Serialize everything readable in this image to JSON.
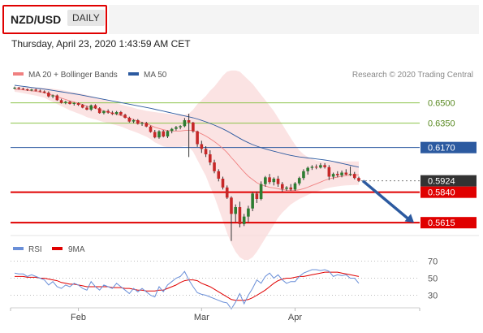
{
  "header": {
    "pair": "NZD/USD",
    "period": "DAILY",
    "datetime": "Thursday, April 23, 2020 1:43:59 AM CET"
  },
  "credit": "Research © 2020 Trading Central",
  "colors": {
    "ma20": "#f08080",
    "ma50": "#2c5aa0",
    "support": "#e00000",
    "pivot_line": "#2c5aa0",
    "target_line": "#8bc34a",
    "up_candle": "#2e7d32",
    "down_candle": "#c62828",
    "rsi": "#6a8fd8",
    "ma9": "#e00000",
    "arrow": "#2c5aa0",
    "band_fill": "#fadada"
  },
  "chart_data": [
    {
      "type": "candlestick",
      "legend": [
        "MA 20 + Bollinger Bands",
        "MA 50"
      ],
      "x_labels": [
        "Feb",
        "Mar",
        "Apr"
      ],
      "ylim": [
        0.552,
        0.66
      ],
      "level_lines": [
        {
          "label": "0.6500",
          "kind": "target"
        },
        {
          "label": "0.6350",
          "kind": "target"
        },
        {
          "label": "0.6170",
          "kind": "pivot"
        },
        {
          "label": "0.5924",
          "kind": "last"
        },
        {
          "label": "0.5840",
          "kind": "support"
        },
        {
          "label": "0.5615",
          "kind": "support"
        }
      ],
      "candles": [
        [
          0.661,
          0.662,
          0.66,
          0.6612
        ],
        [
          0.6612,
          0.6618,
          0.6598,
          0.6605
        ],
        [
          0.6605,
          0.6612,
          0.6595,
          0.66
        ],
        [
          0.66,
          0.6606,
          0.6588,
          0.6594
        ],
        [
          0.6594,
          0.6604,
          0.6586,
          0.6598
        ],
        [
          0.6598,
          0.6605,
          0.6585,
          0.659
        ],
        [
          0.659,
          0.6598,
          0.6578,
          0.6584
        ],
        [
          0.6584,
          0.6592,
          0.657,
          0.6575
        ],
        [
          0.6575,
          0.6585,
          0.654,
          0.6548
        ],
        [
          0.6548,
          0.6562,
          0.6535,
          0.6555
        ],
        [
          0.6555,
          0.6562,
          0.6515,
          0.652
        ],
        [
          0.652,
          0.653,
          0.6495,
          0.65
        ],
        [
          0.65,
          0.6515,
          0.649,
          0.6508
        ],
        [
          0.6508,
          0.6515,
          0.6488,
          0.6492
        ],
        [
          0.6492,
          0.6505,
          0.648,
          0.6498
        ],
        [
          0.6498,
          0.6504,
          0.6478,
          0.6485
        ],
        [
          0.6485,
          0.6492,
          0.646,
          0.6465
        ],
        [
          0.6465,
          0.6478,
          0.6445,
          0.645
        ],
        [
          0.645,
          0.6488,
          0.644,
          0.6482
        ],
        [
          0.6482,
          0.649,
          0.6455,
          0.646
        ],
        [
          0.646,
          0.6468,
          0.642,
          0.6425
        ],
        [
          0.6425,
          0.6445,
          0.6415,
          0.644
        ],
        [
          0.644,
          0.6452,
          0.642,
          0.6428
        ],
        [
          0.6428,
          0.644,
          0.641,
          0.6418
        ],
        [
          0.6418,
          0.644,
          0.641,
          0.6432
        ],
        [
          0.6432,
          0.644,
          0.6405,
          0.6412
        ],
        [
          0.6412,
          0.642,
          0.6385,
          0.639
        ],
        [
          0.639,
          0.6398,
          0.6355,
          0.6362
        ],
        [
          0.6362,
          0.638,
          0.635,
          0.6372
        ],
        [
          0.6372,
          0.638,
          0.634,
          0.6345
        ],
        [
          0.6345,
          0.636,
          0.633,
          0.6352
        ],
        [
          0.6352,
          0.636,
          0.632,
          0.6325
        ],
        [
          0.6325,
          0.6332,
          0.628,
          0.6285
        ],
        [
          0.6285,
          0.63,
          0.6238,
          0.6245
        ],
        [
          0.6245,
          0.6298,
          0.6235,
          0.629
        ],
        [
          0.629,
          0.63,
          0.6245,
          0.6252
        ],
        [
          0.6252,
          0.6298,
          0.624,
          0.6292
        ],
        [
          0.6292,
          0.6315,
          0.6275,
          0.6308
        ],
        [
          0.6308,
          0.633,
          0.6295,
          0.632
        ],
        [
          0.632,
          0.6335,
          0.6305,
          0.6328
        ],
        [
          0.6328,
          0.6388,
          0.632,
          0.6372
        ],
        [
          0.6372,
          0.642,
          0.61,
          0.6355
        ],
        [
          0.6355,
          0.636,
          0.628,
          0.629
        ],
        [
          0.629,
          0.6295,
          0.6175,
          0.6195
        ],
        [
          0.6195,
          0.622,
          0.613,
          0.616
        ],
        [
          0.616,
          0.618,
          0.61,
          0.612
        ],
        [
          0.612,
          0.615,
          0.604,
          0.606
        ],
        [
          0.606,
          0.608,
          0.598,
          0.5995
        ],
        [
          0.5995,
          0.601,
          0.592,
          0.594
        ],
        [
          0.594,
          0.5955,
          0.586,
          0.5875
        ],
        [
          0.5875,
          0.589,
          0.579,
          0.58
        ],
        [
          0.58,
          0.581,
          0.548,
          0.568
        ],
        [
          0.568,
          0.575,
          0.562,
          0.573
        ],
        [
          0.573,
          0.577,
          0.558,
          0.5605
        ],
        [
          0.5605,
          0.568,
          0.559,
          0.566
        ],
        [
          0.566,
          0.574,
          0.562,
          0.572
        ],
        [
          0.572,
          0.584,
          0.57,
          0.583
        ],
        [
          0.583,
          0.5845,
          0.576,
          0.579
        ],
        [
          0.579,
          0.592,
          0.578,
          0.59
        ],
        [
          0.59,
          0.596,
          0.588,
          0.595
        ],
        [
          0.595,
          0.5975,
          0.59,
          0.5915
        ],
        [
          0.5915,
          0.595,
          0.589,
          0.594
        ],
        [
          0.594,
          0.596,
          0.588,
          0.59
        ],
        [
          0.59,
          0.5915,
          0.5845,
          0.5865
        ],
        [
          0.5865,
          0.5885,
          0.585,
          0.5875
        ],
        [
          0.5875,
          0.59,
          0.585,
          0.586
        ],
        [
          0.586,
          0.5915,
          0.585,
          0.5905
        ],
        [
          0.5905,
          0.5955,
          0.589,
          0.5945
        ],
        [
          0.5945,
          0.601,
          0.593,
          0.5995
        ],
        [
          0.5995,
          0.603,
          0.597,
          0.602
        ],
        [
          0.602,
          0.604,
          0.6005,
          0.6028
        ],
        [
          0.6028,
          0.6045,
          0.601,
          0.6022
        ],
        [
          0.6022,
          0.6055,
          0.6015,
          0.604
        ],
        [
          0.604,
          0.6055,
          0.6015,
          0.6025
        ],
        [
          0.6025,
          0.604,
          0.593,
          0.5955
        ],
        [
          0.5955,
          0.5985,
          0.5935,
          0.5975
        ],
        [
          0.5975,
          0.5995,
          0.595,
          0.5965
        ],
        [
          0.5965,
          0.6,
          0.595,
          0.5985
        ],
        [
          0.5985,
          0.601,
          0.5965,
          0.597
        ],
        [
          0.597,
          0.603,
          0.596,
          0.5975
        ],
        [
          0.5975,
          0.599,
          0.5935,
          0.5945
        ],
        [
          0.5945,
          0.5955,
          0.5915,
          0.5924
        ]
      ],
      "ma20": [
        0.66,
        0.6598,
        0.6596,
        0.6592,
        0.6589,
        0.6585,
        0.658,
        0.6574,
        0.6565,
        0.6556,
        0.6546,
        0.6535,
        0.6525,
        0.6515,
        0.6506,
        0.6497,
        0.6487,
        0.6476,
        0.6468,
        0.646,
        0.645,
        0.6441,
        0.6433,
        0.6424,
        0.6416,
        0.6407,
        0.6397,
        0.6386,
        0.6376,
        0.6366,
        0.6356,
        0.6346,
        0.6334,
        0.632,
        0.6311,
        0.6302,
        0.6296,
        0.6293,
        0.6292,
        0.6292,
        0.6296,
        0.6298,
        0.6295,
        0.6285,
        0.6271,
        0.6255,
        0.6236,
        0.6214,
        0.619,
        0.6163,
        0.6134,
        0.6096,
        0.6062,
        0.6025,
        0.599,
        0.5958,
        0.5934,
        0.591,
        0.5895,
        0.5886,
        0.5876,
        0.5872,
        0.5866,
        0.5859,
        0.5855,
        0.5852,
        0.5853,
        0.5858,
        0.5866,
        0.5877,
        0.589,
        0.5902,
        0.5915,
        0.5928,
        0.5938,
        0.5946,
        0.5952,
        0.5958,
        0.5962,
        0.5966,
        0.5968,
        0.5968
      ],
      "bb_upper": [
        0.662,
        0.662,
        0.662,
        0.6618,
        0.6616,
        0.6614,
        0.6612,
        0.661,
        0.6608,
        0.6605,
        0.66,
        0.6595,
        0.659,
        0.6584,
        0.6578,
        0.6572,
        0.6565,
        0.6558,
        0.655,
        0.6542,
        0.6533,
        0.6524,
        0.6515,
        0.6506,
        0.6497,
        0.6488,
        0.648,
        0.6472,
        0.6463,
        0.6455,
        0.6448,
        0.6441,
        0.6436,
        0.6432,
        0.6428,
        0.6425,
        0.642,
        0.6416,
        0.6412,
        0.641,
        0.6412,
        0.642,
        0.645,
        0.649,
        0.652,
        0.655,
        0.659,
        0.662,
        0.666,
        0.67,
        0.673,
        0.674,
        0.674,
        0.673,
        0.67,
        0.667,
        0.664,
        0.66,
        0.656,
        0.652,
        0.648,
        0.644,
        0.639,
        0.634,
        0.629,
        0.624,
        0.619,
        0.615,
        0.612,
        0.61,
        0.6085,
        0.6075,
        0.607,
        0.6068,
        0.6068,
        0.6068,
        0.6068,
        0.6068,
        0.6068,
        0.6068,
        0.6068,
        0.6068
      ],
      "bb_lower": [
        0.6582,
        0.6578,
        0.6572,
        0.6566,
        0.656,
        0.6554,
        0.6546,
        0.6538,
        0.6522,
        0.6507,
        0.6492,
        0.6475,
        0.646,
        0.6446,
        0.6434,
        0.6422,
        0.6409,
        0.6394,
        0.6386,
        0.6378,
        0.6367,
        0.6358,
        0.6351,
        0.6342,
        0.6335,
        0.6326,
        0.6314,
        0.63,
        0.6289,
        0.6277,
        0.6264,
        0.6251,
        0.6232,
        0.6208,
        0.6194,
        0.6179,
        0.6172,
        0.617,
        0.6172,
        0.6174,
        0.618,
        0.6176,
        0.614,
        0.608,
        0.602,
        0.596,
        0.588,
        0.581,
        0.572,
        0.563,
        0.554,
        0.546,
        0.54,
        0.536,
        0.534,
        0.534,
        0.536,
        0.54,
        0.545,
        0.55,
        0.555,
        0.56,
        0.565,
        0.569,
        0.572,
        0.575,
        0.577,
        0.579,
        0.5805,
        0.582,
        0.5835,
        0.5845,
        0.5855,
        0.5865,
        0.5872,
        0.5878,
        0.5883,
        0.5887,
        0.589,
        0.5892,
        0.5893,
        0.5893
      ],
      "ma50": [
        0.663,
        0.6626,
        0.6622,
        0.6618,
        0.6614,
        0.661,
        0.6606,
        0.6602,
        0.6597,
        0.6592,
        0.6587,
        0.6582,
        0.6577,
        0.6572,
        0.6567,
        0.6562,
        0.6556,
        0.655,
        0.6544,
        0.6538,
        0.6532,
        0.6526,
        0.652,
        0.6514,
        0.6508,
        0.6502,
        0.6496,
        0.649,
        0.6484,
        0.6478,
        0.6472,
        0.6466,
        0.646,
        0.6453,
        0.6446,
        0.6439,
        0.6432,
        0.6425,
        0.6418,
        0.6411,
        0.6404,
        0.6397,
        0.639,
        0.6381,
        0.6371,
        0.636,
        0.6348,
        0.6336,
        0.6322,
        0.6308,
        0.6292,
        0.6274,
        0.6256,
        0.6238,
        0.6221,
        0.6206,
        0.6192,
        0.618,
        0.6169,
        0.616,
        0.6151,
        0.6143,
        0.6135,
        0.6127,
        0.6119,
        0.6112,
        0.6106,
        0.6101,
        0.6097,
        0.6093,
        0.609,
        0.6086,
        0.6082,
        0.6078,
        0.6073,
        0.6067,
        0.606,
        0.6053,
        0.6046,
        0.6039,
        0.6032,
        0.6025
      ],
      "forecast": {
        "from": 0.5924,
        "to": 0.5615
      }
    },
    {
      "type": "line",
      "legend": [
        "RSI",
        "9MA"
      ],
      "ylim": [
        20,
        80
      ],
      "levels": [
        "70",
        "50",
        "30"
      ],
      "rsi": [
        56,
        55,
        55,
        52,
        54,
        52,
        50,
        48,
        42,
        46,
        40,
        38,
        42,
        40,
        44,
        42,
        38,
        36,
        46,
        40,
        36,
        42,
        40,
        38,
        44,
        40,
        36,
        32,
        38,
        34,
        38,
        34,
        30,
        28,
        40,
        34,
        42,
        46,
        50,
        52,
        58,
        48,
        40,
        33,
        31,
        30,
        28,
        26,
        24,
        22,
        21,
        14,
        22,
        32,
        20,
        30,
        38,
        48,
        44,
        52,
        56,
        50,
        54,
        48,
        44,
        46,
        46,
        52,
        56,
        58,
        60,
        60,
        59,
        60,
        58,
        52,
        54,
        53,
        54,
        50,
        50,
        44
      ],
      "ma9": [
        52,
        52,
        52,
        51,
        51,
        51,
        50,
        50,
        49,
        48,
        47,
        45,
        44,
        43,
        43,
        42,
        41,
        40,
        40,
        40,
        40,
        40,
        40,
        39,
        39,
        39,
        38,
        38,
        37,
        36,
        36,
        35,
        35,
        35,
        36,
        36,
        38,
        40,
        42,
        45,
        47,
        48,
        48,
        47,
        44,
        42,
        40,
        37,
        34,
        31,
        28,
        25,
        24,
        24,
        24,
        25,
        27,
        30,
        33,
        36,
        40,
        44,
        47,
        49,
        50,
        50,
        51,
        52,
        52,
        53,
        54,
        55,
        56,
        57,
        57,
        57,
        57,
        56,
        55,
        54,
        53,
        52
      ]
    }
  ]
}
